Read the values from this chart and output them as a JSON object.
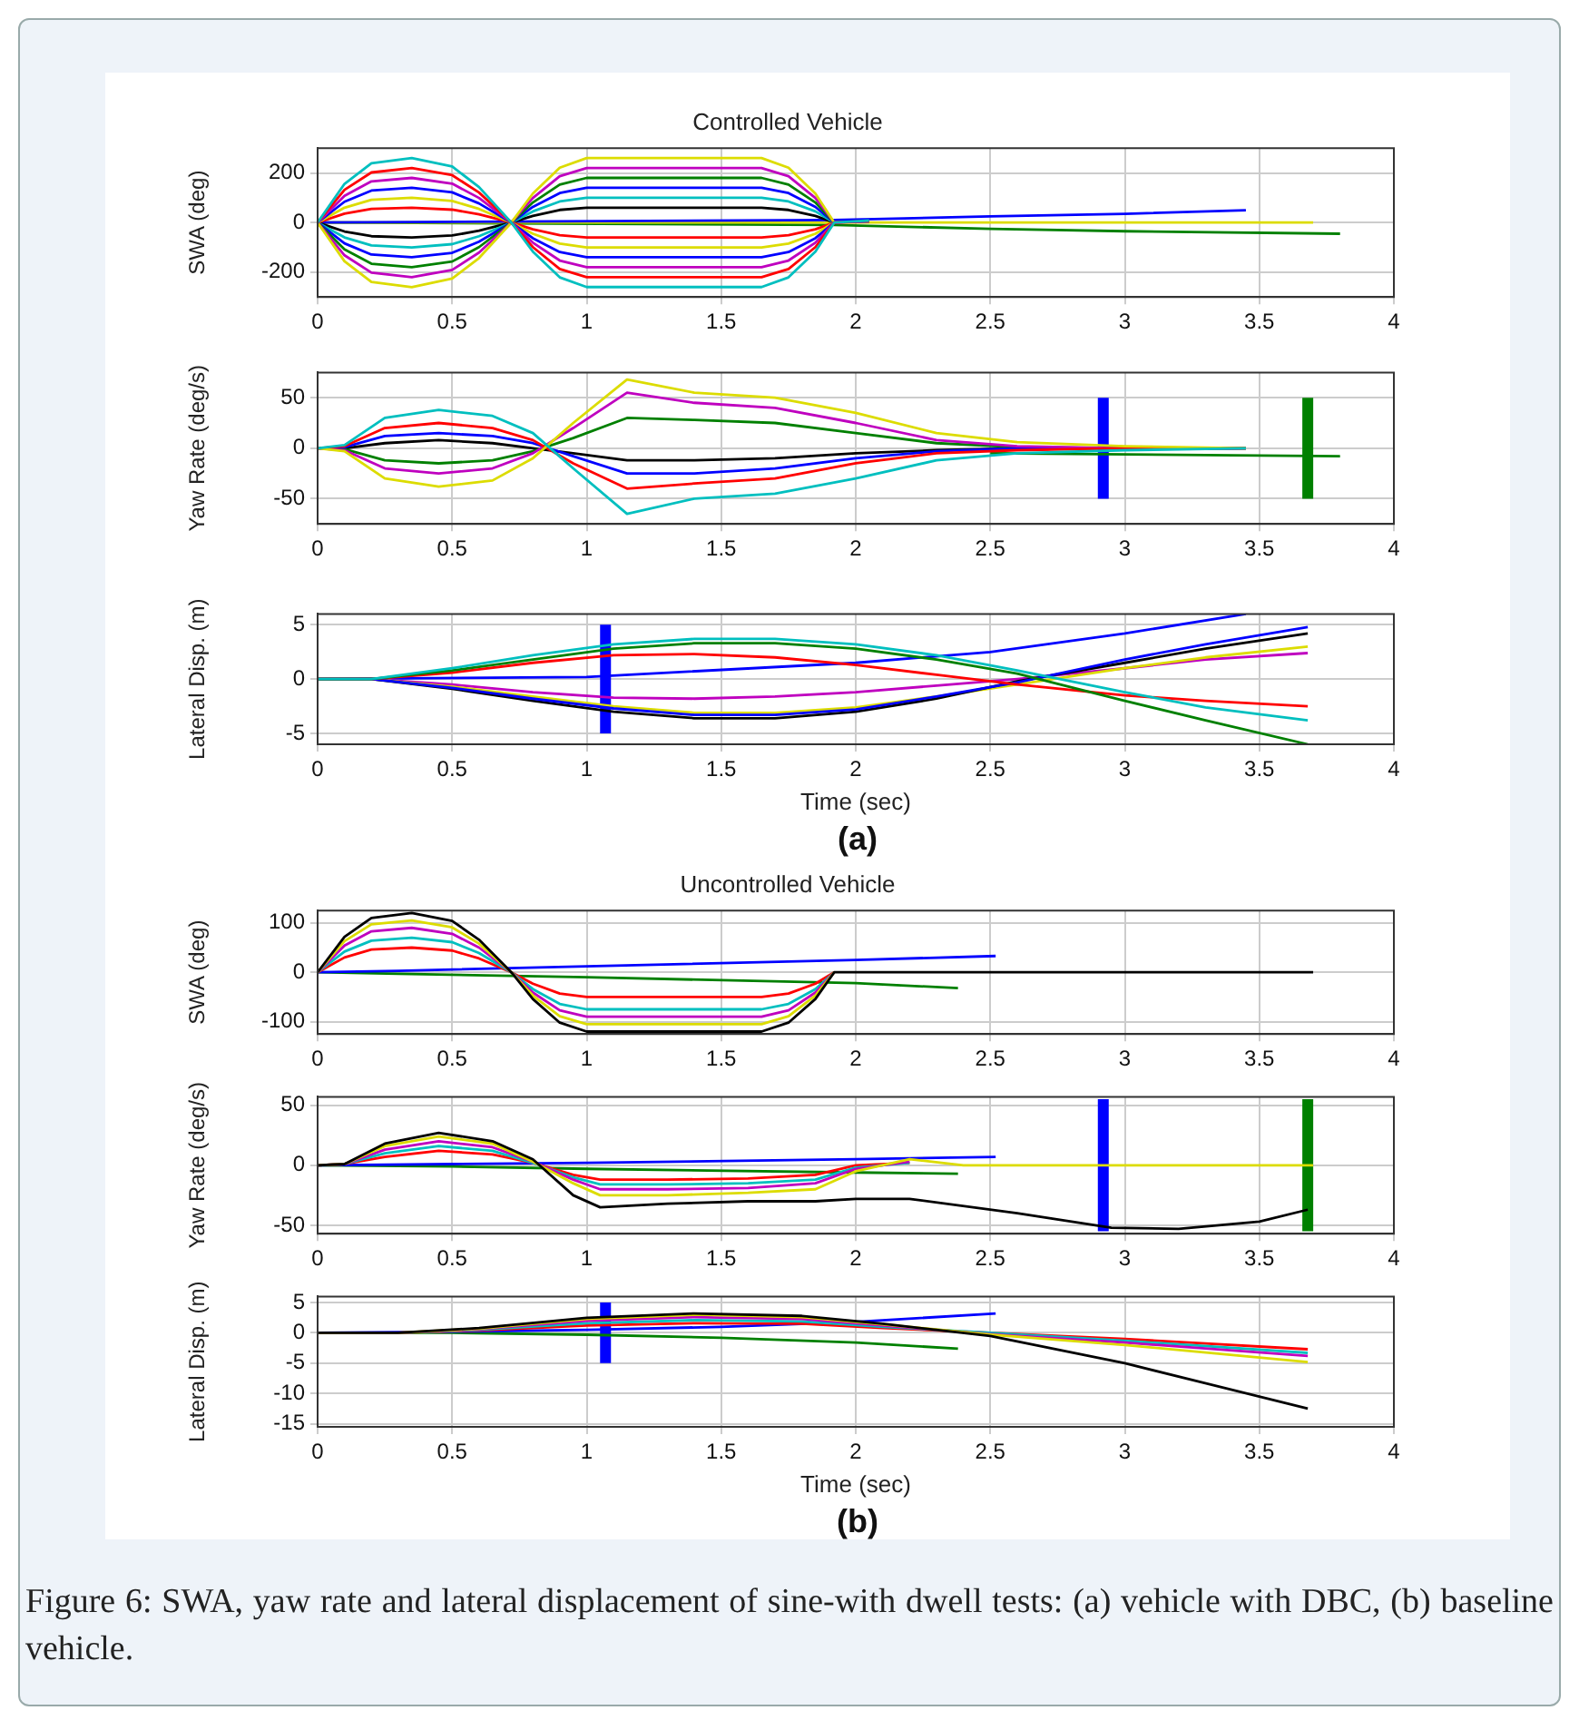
{
  "chart_data": [
    {
      "type": "line",
      "title": "Controlled Vehicle",
      "ylabel": "SWA (deg)",
      "xlim": [
        0,
        4
      ],
      "xticks": [
        0,
        0.5,
        1,
        1.5,
        2,
        2.5,
        3,
        3.5,
        4
      ],
      "ylim": [
        -300,
        300
      ],
      "yticks": [
        -200,
        0,
        200
      ],
      "grid": true,
      "x": [
        0,
        0.1,
        0.2,
        0.35,
        0.5,
        0.6,
        0.72,
        0.8,
        0.9,
        1.0,
        1.65,
        1.75,
        1.85,
        1.92,
        2.05
      ],
      "series": [
        {
          "color": "#00bfbf",
          "values": [
            0,
            156,
            239,
            260,
            226,
            143,
            0,
            -117,
            -221,
            -260,
            -260,
            -221,
            -117,
            0,
            8
          ]
        },
        {
          "color": "#ff0000",
          "values": [
            0,
            132,
            202,
            220,
            191,
            121,
            0,
            -99,
            -187,
            -220,
            -220,
            -187,
            -99,
            0,
            7
          ]
        },
        {
          "color": "#bf00bf",
          "values": [
            0,
            108,
            166,
            180,
            157,
            99,
            0,
            -81,
            -153,
            -180,
            -180,
            -153,
            -81,
            0,
            6
          ]
        },
        {
          "color": "#0000ff",
          "values": [
            0,
            84,
            129,
            140,
            122,
            77,
            0,
            -63,
            -119,
            -140,
            -140,
            -119,
            -63,
            0,
            5
          ]
        },
        {
          "color": "#dcdc00",
          "values": [
            0,
            60,
            92,
            100,
            87,
            55,
            0,
            -45,
            -85,
            -100,
            -100,
            -85,
            -45,
            0,
            4
          ]
        },
        {
          "color": "#ff0000",
          "values": [
            0,
            36,
            55,
            60,
            52,
            33,
            0,
            -27,
            -51,
            -60,
            -60,
            -51,
            -27,
            0,
            3
          ]
        },
        {
          "color": "#dcdc00",
          "values": [
            0,
            -156,
            -239,
            -260,
            -226,
            -143,
            0,
            117,
            221,
            260,
            260,
            221,
            117,
            0,
            null
          ]
        },
        {
          "color": "#bf00bf",
          "values": [
            0,
            -132,
            -202,
            -220,
            -191,
            -121,
            0,
            99,
            187,
            220,
            220,
            187,
            99,
            0,
            null
          ]
        },
        {
          "color": "#008000",
          "values": [
            0,
            -108,
            -166,
            -180,
            -157,
            -99,
            0,
            81,
            153,
            180,
            180,
            153,
            81,
            0,
            null
          ]
        },
        {
          "color": "#0000ff",
          "values": [
            0,
            -84,
            -129,
            -140,
            -122,
            -77,
            0,
            63,
            119,
            140,
            140,
            119,
            63,
            0,
            null
          ]
        },
        {
          "color": "#00bfbf",
          "values": [
            0,
            -60,
            -92,
            -100,
            -87,
            -55,
            0,
            45,
            85,
            100,
            100,
            85,
            45,
            0,
            null
          ]
        },
        {
          "color": "#000000",
          "values": [
            0,
            -36,
            -55,
            -60,
            -52,
            -33,
            0,
            27,
            51,
            60,
            60,
            51,
            27,
            0,
            null
          ]
        },
        {
          "color": "#0000ff",
          "x": [
            0,
            1.92,
            2.5,
            3,
            3.45
          ],
          "values": [
            0,
            10,
            25,
            35,
            50
          ]
        },
        {
          "color": "#dcdc00",
          "x": [
            0,
            3.7
          ],
          "values": [
            0,
            0
          ]
        },
        {
          "color": "#008000",
          "x": [
            0,
            1.92,
            2.5,
            3,
            3.8
          ],
          "values": [
            0,
            -10,
            -25,
            -35,
            -45
          ]
        }
      ]
    },
    {
      "type": "line",
      "ylabel": "Yaw Rate (deg/s)",
      "xlim": [
        0,
        4
      ],
      "xticks": [
        0,
        0.5,
        1,
        1.5,
        2,
        2.5,
        3,
        3.5,
        4
      ],
      "ylim": [
        -75,
        75
      ],
      "yticks": [
        -50,
        0,
        50
      ],
      "grid": true,
      "x": [
        0,
        0.1,
        0.25,
        0.45,
        0.65,
        0.8,
        0.95,
        1.15,
        1.4,
        1.7,
        2.0,
        2.3,
        2.6,
        3.0,
        3.45
      ],
      "series": [
        {
          "color": "#00bfbf",
          "values": [
            0,
            3,
            30,
            38,
            32,
            15,
            -20,
            -65,
            -50,
            -45,
            -30,
            -12,
            -5,
            -2,
            0
          ]
        },
        {
          "color": "#dcdc00",
          "values": [
            0,
            -3,
            -30,
            -38,
            -32,
            -10,
            25,
            68,
            55,
            50,
            35,
            15,
            6,
            2,
            0
          ]
        },
        {
          "color": "#ff0000",
          "values": [
            0,
            2,
            20,
            25,
            20,
            8,
            -15,
            -40,
            -35,
            -30,
            -15,
            -5,
            -2,
            0,
            0
          ]
        },
        {
          "color": "#bf00bf",
          "values": [
            0,
            -2,
            -20,
            -25,
            -20,
            -5,
            20,
            55,
            45,
            40,
            25,
            8,
            2,
            0,
            0
          ]
        },
        {
          "color": "#0000ff",
          "values": [
            0,
            1,
            12,
            15,
            12,
            5,
            -8,
            -25,
            -25,
            -20,
            -10,
            -3,
            0,
            0,
            0
          ]
        },
        {
          "color": "#008000",
          "values": [
            0,
            -1,
            -12,
            -15,
            -12,
            -3,
            10,
            30,
            28,
            25,
            15,
            5,
            1,
            0,
            0
          ]
        },
        {
          "color": "#000000",
          "values": [
            0,
            0,
            5,
            8,
            5,
            0,
            -5,
            -12,
            -12,
            -10,
            -5,
            -2,
            0,
            0,
            0
          ]
        },
        {
          "color": "#008000",
          "x": [
            2.5,
            3.8
          ],
          "values": [
            -5,
            -8
          ]
        },
        {
          "color": "#0000ff",
          "x": [
            2.92,
            2.92
          ],
          "values": [
            -50,
            50
          ]
        },
        {
          "color": "#008000",
          "x": [
            3.68,
            3.68
          ],
          "values": [
            -50,
            50
          ]
        }
      ]
    },
    {
      "type": "line",
      "ylabel": "Lateral Disp. (m)",
      "xlabel": "Time (sec)",
      "annotations": [
        "(a)"
      ],
      "xlim": [
        0,
        4
      ],
      "xticks": [
        0,
        0.5,
        1,
        1.5,
        2,
        2.5,
        3,
        3.5,
        4
      ],
      "ylim": [
        -6,
        6
      ],
      "yticks": [
        -5,
        0,
        5
      ],
      "grid": true,
      "x": [
        0,
        0.2,
        0.5,
        0.8,
        1.1,
        1.4,
        1.7,
        2.0,
        2.3,
        2.6,
        3.0,
        3.3,
        3.68
      ],
      "series": [
        {
          "color": "#00bfbf",
          "values": [
            0,
            0,
            1,
            2.2,
            3.2,
            3.7,
            3.7,
            3.2,
            2.2,
            0.8,
            -1.2,
            -2.6,
            -3.8
          ]
        },
        {
          "color": "#008000",
          "values": [
            0,
            0,
            0.8,
            1.8,
            2.8,
            3.3,
            3.3,
            2.8,
            1.8,
            0.5,
            -2,
            -3.8,
            -6
          ]
        },
        {
          "color": "#ff0000",
          "values": [
            0,
            0,
            0.6,
            1.5,
            2.2,
            2.3,
            2,
            1.3,
            0.4,
            -0.5,
            -1.5,
            -2,
            -2.5
          ]
        },
        {
          "color": "#0000ff",
          "values": [
            0,
            0,
            -0.8,
            -1.8,
            -2.7,
            -3.3,
            -3.3,
            -2.8,
            -1.6,
            -0.3,
            1.8,
            3.2,
            4.8
          ]
        },
        {
          "color": "#000000",
          "values": [
            0,
            0,
            -0.9,
            -2,
            -3,
            -3.6,
            -3.6,
            -3,
            -1.8,
            -0.2,
            1.5,
            2.8,
            4.2
          ]
        },
        {
          "color": "#dcdc00",
          "values": [
            0,
            0,
            -0.7,
            -1.6,
            -2.5,
            -3.1,
            -3.1,
            -2.6,
            -1.6,
            -0.5,
            1,
            2,
            3
          ]
        },
        {
          "color": "#bf00bf",
          "values": [
            0,
            0,
            -0.5,
            -1.2,
            -1.7,
            -1.8,
            -1.6,
            -1.2,
            -0.6,
            0,
            1,
            1.8,
            2.4
          ]
        },
        {
          "color": "#0000ff",
          "x": [
            0,
            1,
            2,
            2.5,
            3,
            3.45
          ],
          "values": [
            0,
            0.2,
            1.5,
            2.5,
            4.2,
            6
          ]
        },
        {
          "color": "#0000ff",
          "x": [
            1.07,
            1.07
          ],
          "values": [
            -5,
            5
          ]
        }
      ]
    },
    {
      "type": "line",
      "title": "Uncontrolled Vehicle",
      "ylabel": "SWA (deg)",
      "xlim": [
        0,
        4
      ],
      "xticks": [
        0,
        0.5,
        1,
        1.5,
        2,
        2.5,
        3,
        3.5,
        4
      ],
      "ylim": [
        -125,
        125
      ],
      "yticks": [
        -100,
        0,
        100
      ],
      "grid": true,
      "x": [
        0,
        0.1,
        0.2,
        0.35,
        0.5,
        0.6,
        0.72,
        0.8,
        0.9,
        1.0,
        1.65,
        1.75,
        1.85,
        1.92
      ],
      "series": [
        {
          "color": "#000000",
          "x": [
            0,
            0.1,
            0.2,
            0.35,
            0.5,
            0.6,
            0.72,
            0.8,
            0.9,
            1.0,
            1.65,
            1.75,
            1.85,
            1.92,
            3.7
          ],
          "values": [
            0,
            72,
            110,
            120,
            104,
            66,
            0,
            -54,
            -102,
            -120,
            -120,
            -102,
            -54,
            0,
            0
          ]
        },
        {
          "color": "#dcdc00",
          "values": [
            0,
            63,
            97,
            105,
            91,
            58,
            0,
            -47,
            -89,
            -105,
            -105,
            -89,
            -47,
            0
          ]
        },
        {
          "color": "#bf00bf",
          "values": [
            0,
            54,
            83,
            90,
            78,
            50,
            0,
            -41,
            -77,
            -90,
            -90,
            -77,
            -41,
            0
          ]
        },
        {
          "color": "#00bfbf",
          "values": [
            0,
            42,
            64,
            70,
            61,
            39,
            0,
            -34,
            -64,
            -75,
            -75,
            -64,
            -34,
            0
          ]
        },
        {
          "color": "#ff0000",
          "values": [
            0,
            30,
            46,
            50,
            44,
            28,
            0,
            -23,
            -43,
            -50,
            -50,
            -43,
            -23,
            0
          ]
        },
        {
          "color": "#0000ff",
          "x": [
            0,
            0.3,
            1,
            2,
            2.52
          ],
          "values": [
            0,
            3,
            12,
            25,
            33
          ]
        },
        {
          "color": "#008000",
          "x": [
            0,
            0.3,
            1,
            2,
            2.38
          ],
          "values": [
            0,
            -3,
            -10,
            -22,
            -32
          ]
        }
      ]
    },
    {
      "type": "line",
      "ylabel": "Yaw Rate (deg/s)",
      "xlim": [
        0,
        4
      ],
      "xticks": [
        0,
        0.5,
        1,
        1.5,
        2,
        2.5,
        3,
        3.5,
        4
      ],
      "ylim": [
        -57,
        57
      ],
      "yticks": [
        -50,
        0,
        50
      ],
      "grid": true,
      "x": [
        0,
        0.1,
        0.25,
        0.45,
        0.65,
        0.8,
        0.95,
        1.05,
        1.3,
        1.6,
        1.85,
        2.0,
        2.2
      ],
      "series": [
        {
          "color": "#000000",
          "x": [
            0,
            0.1,
            0.25,
            0.45,
            0.65,
            0.8,
            0.95,
            1.05,
            1.3,
            1.6,
            1.85,
            2.0,
            2.2,
            2.6,
            2.95,
            3.2,
            3.5,
            3.68
          ],
          "values": [
            0,
            1,
            18,
            27,
            20,
            5,
            -25,
            -35,
            -32,
            -30,
            -30,
            -28,
            -28,
            -40,
            -52,
            -53,
            -47,
            -37
          ]
        },
        {
          "color": "#dcdc00",
          "x": [
            0,
            0.1,
            0.25,
            0.45,
            0.65,
            0.8,
            0.95,
            1.05,
            1.3,
            1.6,
            1.85,
            2.0,
            2.2,
            2.4,
            3.7
          ],
          "values": [
            0,
            1,
            16,
            24,
            18,
            3,
            -15,
            -25,
            -25,
            -23,
            -20,
            -5,
            5,
            0,
            0
          ]
        },
        {
          "color": "#bf00bf",
          "values": [
            0,
            1,
            13,
            20,
            15,
            3,
            -12,
            -20,
            -20,
            -19,
            -15,
            -3,
            3
          ]
        },
        {
          "color": "#00bfbf",
          "values": [
            0,
            1,
            10,
            16,
            12,
            2,
            -10,
            -16,
            -16,
            -15,
            -12,
            -2,
            2
          ]
        },
        {
          "color": "#ff0000",
          "values": [
            0,
            1,
            7,
            12,
            9,
            2,
            -8,
            -12,
            -12,
            -11,
            -8,
            0,
            2
          ]
        },
        {
          "color": "#0000ff",
          "x": [
            0,
            0.5,
            1,
            2,
            2.52
          ],
          "values": [
            0,
            1,
            2,
            5,
            7
          ]
        },
        {
          "color": "#008000",
          "x": [
            0,
            0.5,
            1,
            2,
            2.38
          ],
          "values": [
            0,
            -1,
            -3,
            -6,
            -7
          ]
        },
        {
          "color": "#0000ff",
          "x": [
            2.92,
            2.92
          ],
          "values": [
            -55,
            55
          ]
        },
        {
          "color": "#008000",
          "x": [
            3.68,
            3.68
          ],
          "values": [
            -55,
            55
          ]
        }
      ]
    },
    {
      "type": "line",
      "ylabel": "Lateral Disp. (m)",
      "xlabel": "Time (sec)",
      "annotations": [
        "(b)",
        "Figure 6: SWA, yaw rate and lateral displacement of sine-with dwell tests: (a) vehicle with DBC, (b) baseline vehicle."
      ],
      "xlim": [
        0,
        4
      ],
      "xticks": [
        0,
        0.5,
        1,
        1.5,
        2,
        2.5,
        3,
        3.5,
        4
      ],
      "ylim": [
        -15.5,
        6
      ],
      "yticks": [
        -15,
        -10,
        -5,
        0,
        5
      ],
      "grid": true,
      "x": [
        0,
        0.3,
        0.6,
        1,
        1.4,
        1.8,
        2.1,
        2.5,
        3,
        3.68
      ],
      "series": [
        {
          "color": "#000000",
          "values": [
            0,
            0,
            0.8,
            2.5,
            3.2,
            2.8,
            1.5,
            -0.5,
            -5,
            -12.5
          ]
        },
        {
          "color": "#dcdc00",
          "values": [
            0,
            0,
            0.7,
            2.3,
            3,
            2.6,
            1.4,
            -0.3,
            -2,
            -4.8
          ]
        },
        {
          "color": "#bf00bf",
          "values": [
            0,
            0,
            0.6,
            2,
            2.6,
            2.3,
            1.2,
            -0.2,
            -1.6,
            -3.8
          ]
        },
        {
          "color": "#00bfbf",
          "values": [
            0,
            0,
            0.5,
            1.6,
            2.1,
            1.9,
            1,
            0,
            -1.3,
            -3.3
          ]
        },
        {
          "color": "#ff0000",
          "values": [
            0,
            0,
            0.4,
            1.2,
            1.6,
            1.5,
            0.8,
            0,
            -1,
            -2.7
          ]
        },
        {
          "color": "#0000ff",
          "x": [
            0,
            0.5,
            1,
            1.5,
            2,
            2.52
          ],
          "values": [
            0,
            0.2,
            0.5,
            1,
            1.8,
            3.2
          ]
        },
        {
          "color": "#008000",
          "x": [
            0,
            0.5,
            1,
            1.5,
            2,
            2.38
          ],
          "values": [
            0,
            0,
            -0.3,
            -0.8,
            -1.6,
            -2.6
          ]
        },
        {
          "color": "#0000ff",
          "x": [
            1.07,
            1.07
          ],
          "values": [
            -5,
            5
          ]
        }
      ]
    }
  ]
}
